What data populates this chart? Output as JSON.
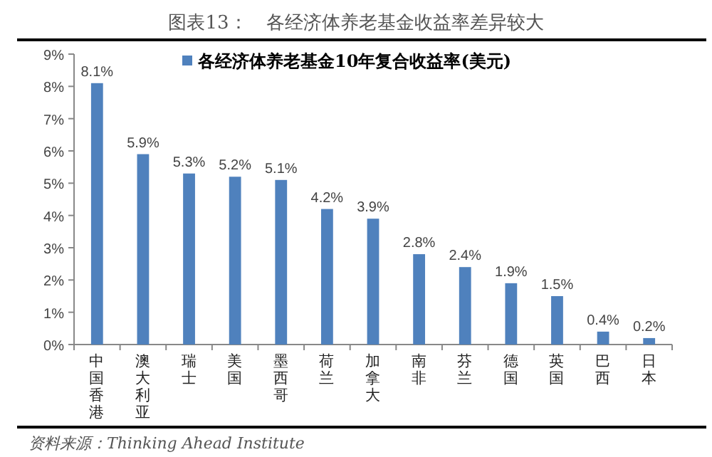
{
  "chart_data": {
    "type": "bar",
    "title": "图表13：　各经济体养老基金收益率差异较大",
    "categories": [
      "中国香港",
      "澳大利亚",
      "瑞士",
      "美国",
      "墨西哥",
      "荷兰",
      "加拿大",
      "南非",
      "芬兰",
      "德国",
      "英国",
      "巴西",
      "日本"
    ],
    "series": [
      {
        "name": "各经济体养老基金10年复合收益率(美元)",
        "color": "#4f81bd",
        "values": [
          8.1,
          5.9,
          5.3,
          5.2,
          5.1,
          4.2,
          3.9,
          2.8,
          2.4,
          1.9,
          1.5,
          0.4,
          0.2
        ],
        "value_labels": [
          "8.1%",
          "5.9%",
          "5.3%",
          "5.2%",
          "5.1%",
          "4.2%",
          "3.9%",
          "2.8%",
          "2.4%",
          "1.9%",
          "1.5%",
          "0.4%",
          "0.2%"
        ]
      }
    ],
    "ylim": [
      0,
      9
    ],
    "yticks": [
      {
        "value": 0,
        "label": "0%"
      },
      {
        "value": 1,
        "label": "1%"
      },
      {
        "value": 2,
        "label": "2%"
      },
      {
        "value": 3,
        "label": "3%"
      },
      {
        "value": 4,
        "label": "4%"
      },
      {
        "value": 5,
        "label": "5%"
      },
      {
        "value": 6,
        "label": "6%"
      },
      {
        "value": 7,
        "label": "7%"
      },
      {
        "value": 8,
        "label": "8%"
      },
      {
        "value": 9,
        "label": "9%"
      }
    ],
    "grid": false,
    "legend": "top",
    "annotations": [
      "资料来源：Thinking Ahead Institute"
    ]
  }
}
